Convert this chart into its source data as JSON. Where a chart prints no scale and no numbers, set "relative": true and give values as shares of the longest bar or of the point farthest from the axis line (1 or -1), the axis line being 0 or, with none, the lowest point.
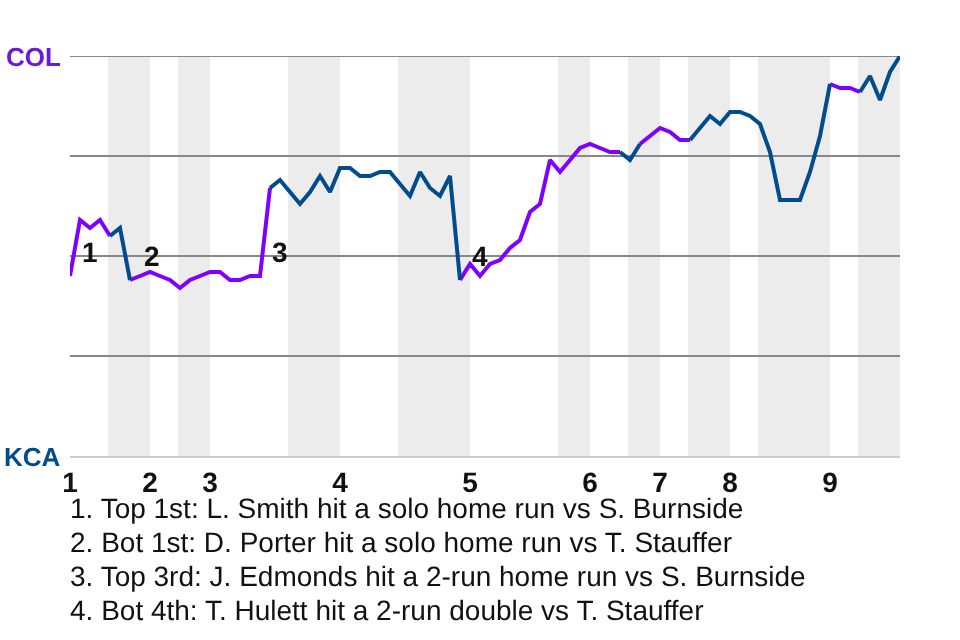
{
  "chart_data": {
    "type": "line",
    "relative": true,
    "categories": [
      "1",
      null,
      null,
      null,
      null,
      null,
      null,
      null,
      "2",
      null,
      null,
      null,
      null,
      null,
      "3",
      null,
      null,
      null,
      null,
      null,
      null,
      null,
      null,
      null,
      null,
      null,
      null,
      "4",
      null,
      null,
      null,
      null,
      null,
      null,
      null,
      null,
      null,
      null,
      null,
      null,
      "5",
      null,
      null,
      null,
      null,
      null,
      null,
      null,
      null,
      null,
      null,
      null,
      "6",
      null,
      null,
      null,
      null,
      null,
      null,
      "7",
      null,
      null,
      null,
      null,
      null,
      null,
      "8",
      null,
      null,
      null,
      null,
      null,
      null,
      null,
      null,
      null,
      "9",
      null,
      null,
      null,
      null,
      null,
      null,
      null
    ],
    "series": [
      {
        "color": "#7f00ff",
        "values": [
          0.45,
          0.59,
          0.57,
          0.59,
          0.55,
          null,
          0.44,
          0.45,
          0.46,
          0.45,
          0.44,
          0.42,
          0.44,
          0.45,
          0.46,
          0.46,
          0.44,
          0.44,
          0.45,
          0.45,
          0.67,
          null,
          null,
          null,
          null,
          null,
          null,
          null,
          null,
          null,
          null,
          null,
          null,
          null,
          null,
          null,
          null,
          null,
          null,
          0.44,
          0.48,
          0.45,
          0.48,
          0.49,
          0.52,
          0.54,
          0.61,
          0.63,
          0.74,
          0.71,
          0.74,
          0.77,
          0.78,
          0.77,
          0.76,
          0.76,
          null,
          0.78,
          0.8,
          0.82,
          0.81,
          0.79,
          0.79,
          null,
          null,
          null,
          null,
          null,
          null,
          null,
          null,
          null,
          null,
          null,
          null,
          null,
          0.93,
          0.92,
          0.92,
          0.91,
          null,
          null,
          null,
          null
        ]
      },
      {
        "color": "#004c8c",
        "values": [
          null,
          null,
          null,
          null,
          0.55,
          0.57,
          0.44,
          null,
          null,
          null,
          null,
          null,
          null,
          null,
          null,
          null,
          null,
          null,
          null,
          null,
          0.67,
          0.69,
          0.66,
          0.63,
          0.66,
          0.7,
          0.66,
          0.72,
          0.72,
          0.7,
          0.7,
          0.71,
          0.71,
          0.68,
          0.65,
          0.71,
          0.67,
          0.65,
          0.7,
          0.44,
          null,
          null,
          null,
          null,
          null,
          null,
          null,
          null,
          null,
          null,
          null,
          null,
          null,
          null,
          null,
          0.76,
          0.74,
          0.78,
          null,
          null,
          null,
          null,
          0.79,
          0.82,
          0.85,
          0.83,
          0.86,
          0.86,
          0.85,
          0.83,
          0.76,
          0.64,
          0.64,
          0.64,
          0.71,
          0.8,
          0.93,
          null,
          null,
          0.91,
          0.95,
          0.89,
          0.96,
          1
        ]
      }
    ],
    "marker": "none",
    "line_style": "solid",
    "ref_lines": [
      {
        "axis": "y",
        "value": 0.25,
        "color": "#888888"
      },
      {
        "axis": "y",
        "value": 0.5,
        "color": "#888888"
      },
      {
        "axis": "y",
        "value": 0.75,
        "color": "#888888"
      },
      {
        "axis": "y",
        "value": 1,
        "color": "#888888"
      }
    ],
    "annotations": [
      "COL",
      "KCA",
      "1",
      "2",
      "3",
      "4",
      "1. Top 1st: L. Smith hit a solo home run vs S. Burnside",
      "2. Bot 1st: D. Porter hit a solo home run vs T. Stauffer",
      "3. Top 3rd: J. Edmonds hit a 2-run home run vs S. Burnside",
      "4. Bot 4th: T. Hulett hit a 2-run double vs T. Stauffer"
    ]
  }
}
